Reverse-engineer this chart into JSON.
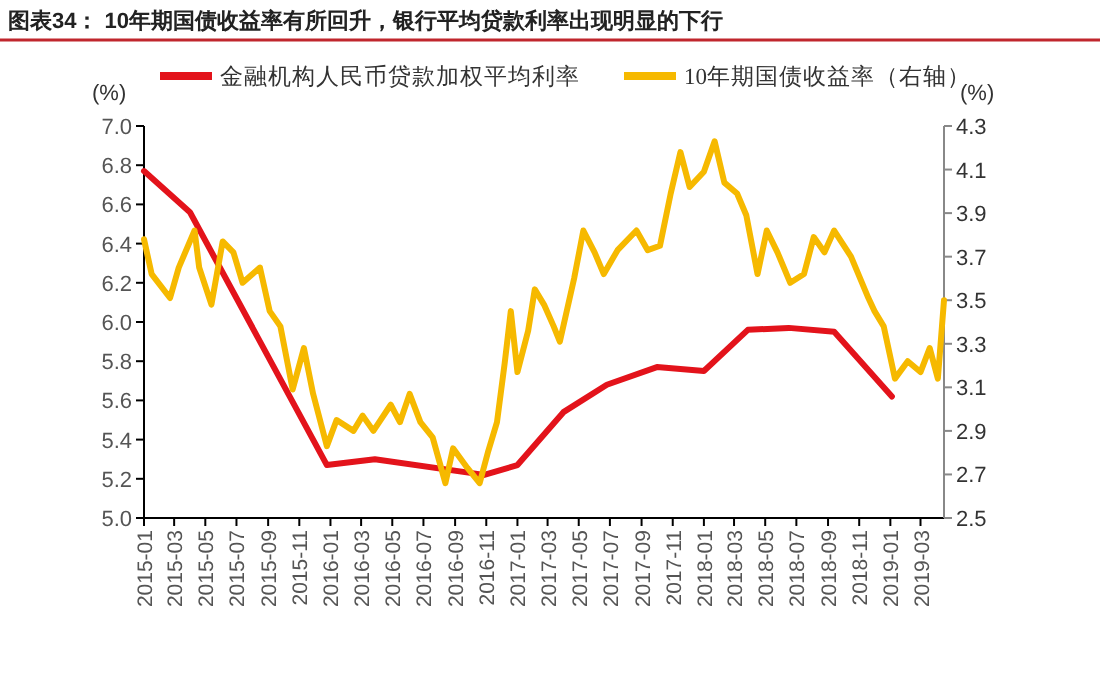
{
  "chart_data": {
    "type": "line",
    "title": "图表34：  10年期国债收益率有所回升，银行平均贷款利率出现明显的下行",
    "ylabel": "(%)",
    "y2label": "(%)",
    "legend": "top",
    "grid": false,
    "xlim": [
      "2015-01-01",
      "2019-04-16"
    ],
    "xticks": [
      "2015-01",
      "2015-03",
      "2015-05",
      "2015-07",
      "2015-09",
      "2015-11",
      "2016-01",
      "2016-03",
      "2016-05",
      "2016-07",
      "2016-09",
      "2016-11",
      "2017-01",
      "2017-03",
      "2017-05",
      "2017-07",
      "2017-09",
      "2017-11",
      "2018-01",
      "2018-03",
      "2018-05",
      "2018-07",
      "2018-09",
      "2018-11",
      "2019-01",
      "2019-03"
    ],
    "ylim": [
      5.0,
      7.0
    ],
    "yticks": [
      {
        "value": 5.0,
        "label": "5.0"
      },
      5.2,
      5.4,
      5.6,
      5.8,
      {
        "value": 6.0,
        "label": "6.0"
      },
      6.2,
      6.4,
      6.6,
      6.8,
      {
        "value": 7.0,
        "label": "7.0"
      }
    ],
    "y2lim": [
      2.5,
      4.3
    ],
    "y2ticks": [
      2.5,
      2.7,
      2.9,
      3.1,
      3.3,
      3.5,
      3.7,
      3.9,
      4.1,
      4.3
    ],
    "series": [
      {
        "name": "金融机构人民币贷款加权平均利率",
        "color": "#e3131b",
        "x": [
          "2015-01-01",
          "2015-04-01",
          "2015-12-25",
          "2016-03-28",
          "2016-10-28",
          "2017-01-01",
          "2017-04-01",
          "2017-06-25",
          "2017-10-01",
          "2018-01-01",
          "2018-03-28",
          "2018-06-16",
          "2018-09-13",
          "2019-01-04"
        ],
        "values": [
          6.77,
          6.56,
          5.27,
          5.3,
          5.22,
          5.27,
          5.54,
          5.68,
          5.77,
          5.75,
          5.96,
          5.97,
          5.95,
          5.62
        ]
      },
      {
        "name": "10年期国债收益率（右轴）",
        "color": "#f6b900",
        "axis": "y2",
        "x": [
          "2015-01-01",
          "2015-01-16",
          "2015-02-21",
          "2015-03-10",
          "2015-04-10",
          "2015-04-19",
          "2015-05-13",
          "2015-06-04",
          "2015-06-25",
          "2015-07-13",
          "2015-08-16",
          "2015-09-04",
          "2015-09-25",
          "2015-10-19",
          "2015-11-10",
          "2015-11-28",
          "2015-12-25",
          "2016-01-13",
          "2016-02-15",
          "2016-03-04",
          "2016-03-25",
          "2016-04-28",
          "2016-05-16",
          "2016-06-04",
          "2016-06-25",
          "2016-07-19",
          "2016-08-13",
          "2016-08-28",
          "2016-09-25",
          "2016-10-19",
          "2016-11-04",
          "2016-11-22",
          "2016-12-07",
          "2016-12-19",
          "2017-01-01",
          "2017-01-22",
          "2017-02-04",
          "2017-02-22",
          "2017-03-13",
          "2017-03-25",
          "2017-04-22",
          "2017-05-10",
          "2017-06-01",
          "2017-06-19",
          "2017-07-16",
          "2017-08-22",
          "2017-09-13",
          "2017-10-07",
          "2017-10-28",
          "2017-11-16",
          "2017-12-04",
          "2018-01-01",
          "2018-01-22",
          "2018-02-10",
          "2018-03-07",
          "2018-03-25",
          "2018-04-16",
          "2018-05-04",
          "2018-05-25",
          "2018-06-19",
          "2018-07-16",
          "2018-08-04",
          "2018-08-25",
          "2018-09-13",
          "2018-10-16",
          "2018-11-19",
          "2018-12-01",
          "2018-12-19",
          "2019-01-10",
          "2019-02-04",
          "2019-03-01",
          "2019-03-19",
          "2019-04-04",
          "2019-04-16"
        ],
        "values": [
          3.78,
          3.62,
          3.51,
          3.65,
          3.82,
          3.65,
          3.48,
          3.77,
          3.72,
          3.58,
          3.65,
          3.45,
          3.38,
          3.09,
          3.28,
          3.07,
          2.83,
          2.95,
          2.9,
          2.97,
          2.9,
          3.02,
          2.94,
          3.07,
          2.94,
          2.87,
          2.66,
          2.82,
          2.73,
          2.66,
          2.8,
          2.94,
          3.21,
          3.45,
          3.17,
          3.36,
          3.55,
          3.48,
          3.38,
          3.31,
          3.6,
          3.82,
          3.72,
          3.62,
          3.73,
          3.82,
          3.73,
          3.75,
          3.99,
          4.18,
          4.02,
          4.09,
          4.23,
          4.04,
          3.99,
          3.89,
          3.62,
          3.82,
          3.72,
          3.58,
          3.62,
          3.79,
          3.72,
          3.82,
          3.7,
          3.51,
          3.45,
          3.38,
          3.14,
          3.22,
          3.17,
          3.28,
          3.14,
          3.5
        ]
      }
    ]
  }
}
